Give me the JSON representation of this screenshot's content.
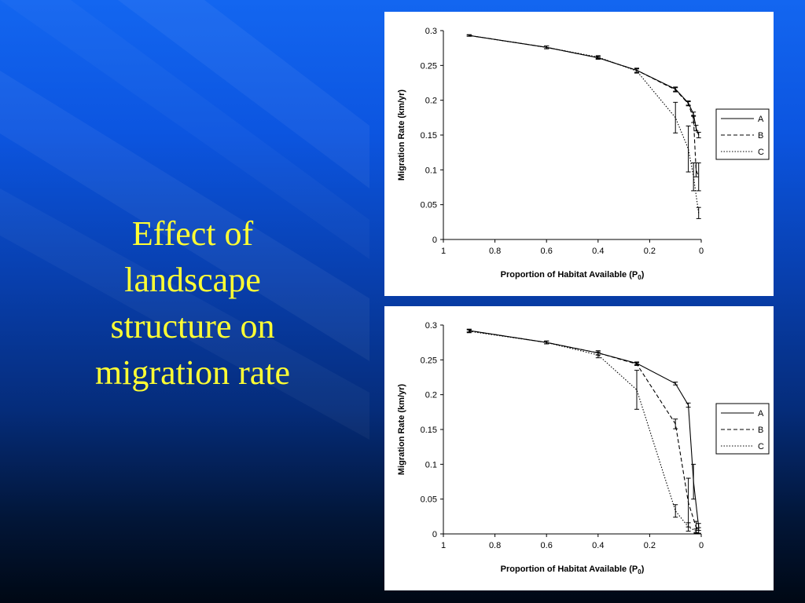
{
  "slide": {
    "title_lines": [
      "Effect of",
      "landscape",
      "structure on",
      "migration rate"
    ]
  },
  "colors": {
    "title": "#ffff33",
    "background_top": "#1366f0",
    "background_bottom": "#000814",
    "panel": "#ffffff",
    "series": "#000000"
  },
  "chart_data": [
    {
      "type": "line",
      "title": "",
      "xlabel": "Proportion of Habitat Available (P",
      "xlabel_subscript": "0",
      "xlabel_close": ")",
      "ylabel": "Migration Rate (km/yr)",
      "xlim": [
        1,
        0
      ],
      "ylim": [
        0,
        0.3
      ],
      "x_ticks": [
        1,
        0.8,
        0.6,
        0.4,
        0.2,
        0
      ],
      "x_tick_labels": [
        "1",
        "0.8",
        "0.6",
        "0.4",
        "0.2",
        "0"
      ],
      "y_ticks": [
        0,
        0.05,
        0.1,
        0.15,
        0.2,
        0.25,
        0.3
      ],
      "y_tick_labels": [
        "0",
        "0.05",
        "0.1",
        "0.15",
        "0.2",
        "0.25",
        "0.3"
      ],
      "grid": false,
      "legend_position": "right",
      "series": [
        {
          "name": "A",
          "style": "solid",
          "x": [
            0.9,
            0.6,
            0.4,
            0.25,
            0.1,
            0.05,
            0.03,
            0.02,
            0.01
          ],
          "y": [
            0.293,
            0.276,
            0.261,
            0.243,
            0.216,
            0.196,
            0.18,
            0.16,
            0.15
          ],
          "err": [
            0.001,
            0.002,
            0.002,
            0.003,
            0.003,
            0.003,
            0.003,
            0.004,
            0.004
          ]
        },
        {
          "name": "B",
          "style": "dashed",
          "x": [
            0.9,
            0.6,
            0.4,
            0.25,
            0.1,
            0.05,
            0.03,
            0.02,
            0.01
          ],
          "y": [
            0.293,
            0.276,
            0.261,
            0.243,
            0.215,
            0.195,
            0.173,
            0.1,
            0.09
          ],
          "err": [
            0.001,
            0.002,
            0.002,
            0.003,
            0.003,
            0.003,
            0.005,
            0.01,
            0.02
          ]
        },
        {
          "name": "C",
          "style": "dotted",
          "x": [
            0.9,
            0.6,
            0.4,
            0.25,
            0.1,
            0.05,
            0.03,
            0.01
          ],
          "y": [
            0.293,
            0.276,
            0.262,
            0.242,
            0.175,
            0.13,
            0.09,
            0.038
          ],
          "err": [
            0.001,
            0.002,
            0.002,
            0.003,
            0.022,
            0.033,
            0.02,
            0.008
          ]
        }
      ]
    },
    {
      "type": "line",
      "title": "",
      "xlabel": "Proportion of Habitat Available (P",
      "xlabel_subscript": "0",
      "xlabel_close": ")",
      "ylabel": "Migration Rate (km/yr)",
      "xlim": [
        1,
        0
      ],
      "ylim": [
        0,
        0.3
      ],
      "x_ticks": [
        1,
        0.8,
        0.6,
        0.4,
        0.2,
        0
      ],
      "x_tick_labels": [
        "1",
        "0.8",
        "0.6",
        "0.4",
        "0.2",
        "0"
      ],
      "y_ticks": [
        0,
        0.05,
        0.1,
        0.15,
        0.2,
        0.25,
        0.3
      ],
      "y_tick_labels": [
        "0",
        "0.05",
        "0.1",
        "0.15",
        "0.2",
        "0.25",
        "0.3"
      ],
      "grid": false,
      "legend_position": "right",
      "series": [
        {
          "name": "A",
          "style": "solid",
          "x": [
            0.9,
            0.6,
            0.4,
            0.25,
            0.1,
            0.05,
            0.03,
            0.01
          ],
          "y": [
            0.292,
            0.275,
            0.26,
            0.245,
            0.216,
            0.185,
            0.075,
            0.01
          ],
          "err": [
            0.002,
            0.002,
            0.003,
            0.002,
            0.002,
            0.003,
            0.025,
            0.005
          ]
        },
        {
          "name": "B",
          "style": "dashed",
          "x": [
            0.9,
            0.6,
            0.4,
            0.25,
            0.1,
            0.05,
            0.02,
            0.01
          ],
          "y": [
            0.292,
            0.275,
            0.26,
            0.244,
            0.158,
            0.045,
            0.01,
            0.005
          ],
          "err": [
            0.002,
            0.002,
            0.003,
            0.002,
            0.007,
            0.035,
            0.008,
            0.004
          ]
        },
        {
          "name": "C",
          "style": "dotted",
          "x": [
            0.9,
            0.6,
            0.4,
            0.25,
            0.1,
            0.05,
            0.02
          ],
          "y": [
            0.291,
            0.275,
            0.257,
            0.207,
            0.033,
            0.01,
            0.004
          ],
          "err": [
            0.002,
            0.002,
            0.004,
            0.028,
            0.009,
            0.006,
            0.003
          ]
        }
      ]
    }
  ]
}
